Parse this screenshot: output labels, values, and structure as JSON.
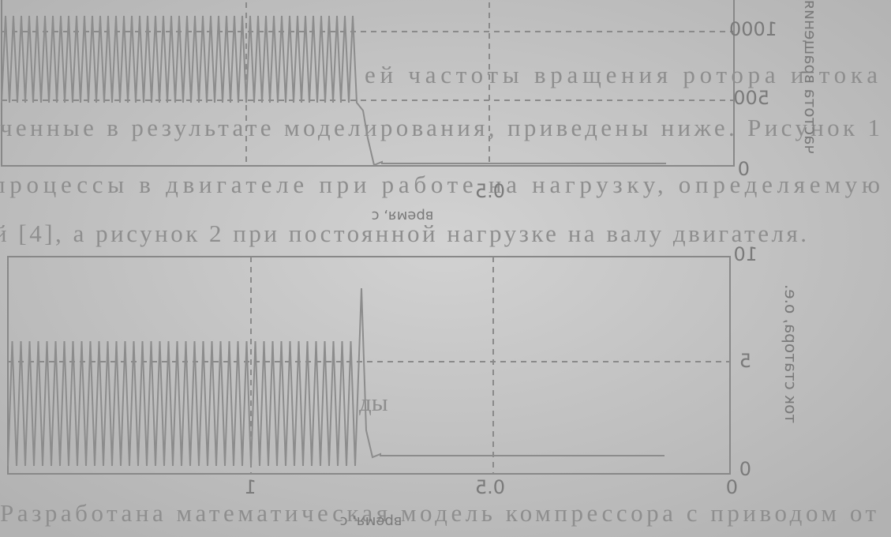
{
  "body_text": {
    "lines": [
      "ей частоты вращения ротора и тока",
      "ченные в результате моделирования, приведены ниже. Рисунок 1",
      "процессы в двигателе при работе на нагрузку, определяемую",
      "й [4], а рисунок 2 при постоянной нагрузке на валу двигателя.",
      "Разработана математическая модель компрессора с приводом от"
    ],
    "fragment": "ды"
  },
  "figure_1": {
    "y_ticks": [
      "1000",
      "500",
      "0"
    ],
    "x_ticks": [
      "0.5"
    ],
    "x_label": "время, с",
    "y_label": "частота вращения"
  },
  "figure_2": {
    "y_ticks": [
      "10",
      "5",
      "0"
    ],
    "x_ticks": [
      "0",
      "0.5",
      "1"
    ],
    "x_label": "время, с",
    "y_label": "ток статора, о.е."
  }
}
